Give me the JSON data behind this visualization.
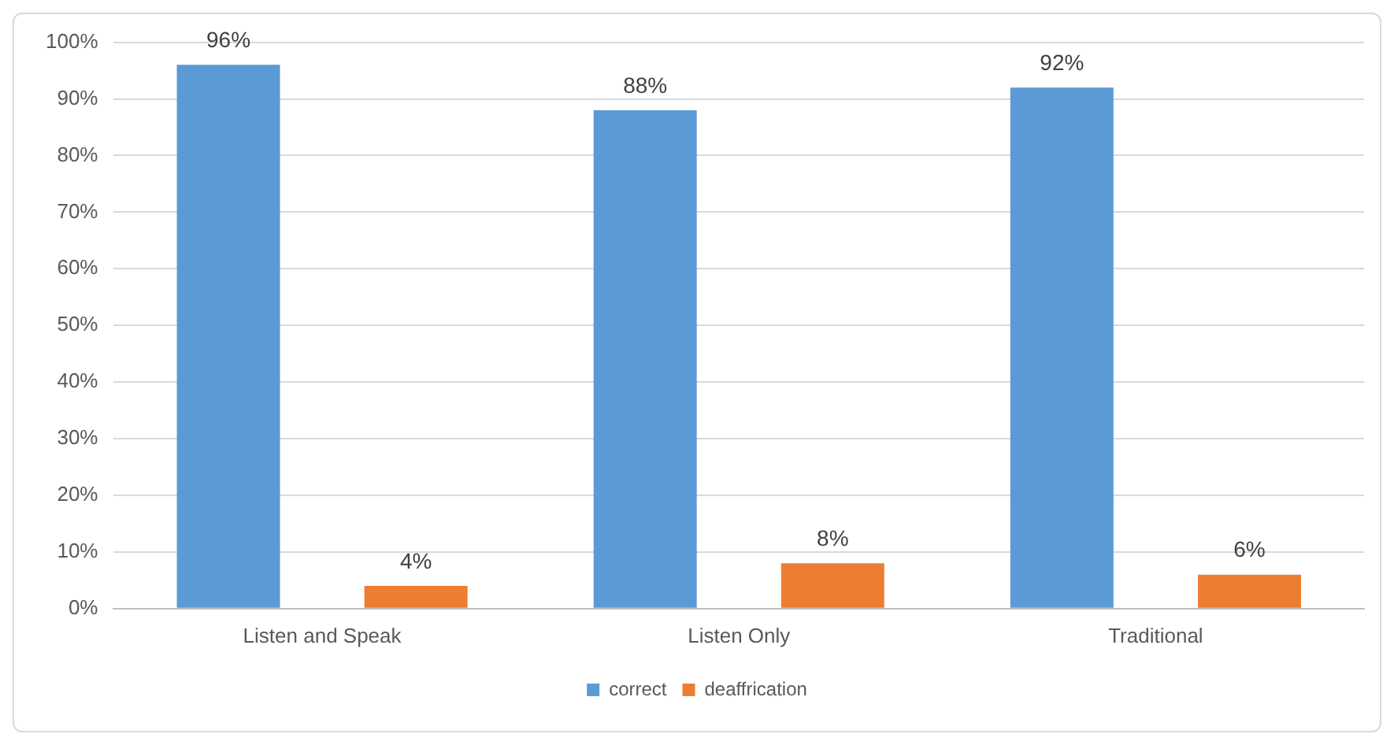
{
  "chart_data": {
    "type": "bar",
    "categories": [
      "Listen and Speak",
      "Listen Only",
      "Traditional"
    ],
    "series": [
      {
        "name": "correct",
        "color": "#5b9bd5",
        "values": [
          96,
          88,
          92
        ],
        "value_labels": [
          "96%",
          "88%",
          "92%"
        ]
      },
      {
        "name": "deaffrication",
        "color": "#ed7d31",
        "values": [
          4,
          8,
          6
        ],
        "value_labels": [
          "4%",
          "8%",
          "6%"
        ]
      }
    ],
    "ylim": [
      0,
      100
    ],
    "yticks": [
      {
        "value": 0,
        "label": "0%"
      },
      {
        "value": 10,
        "label": "10%"
      },
      {
        "value": 20,
        "label": "20%"
      },
      {
        "value": 30,
        "label": "30%"
      },
      {
        "value": 40,
        "label": "40%"
      },
      {
        "value": 50,
        "label": "50%"
      },
      {
        "value": 60,
        "label": "60%"
      },
      {
        "value": 70,
        "label": "70%"
      },
      {
        "value": 80,
        "label": "80%"
      },
      {
        "value": 90,
        "label": "90%"
      },
      {
        "value": 100,
        "label": "100%"
      }
    ],
    "grid": "y",
    "legend": "bottom"
  }
}
